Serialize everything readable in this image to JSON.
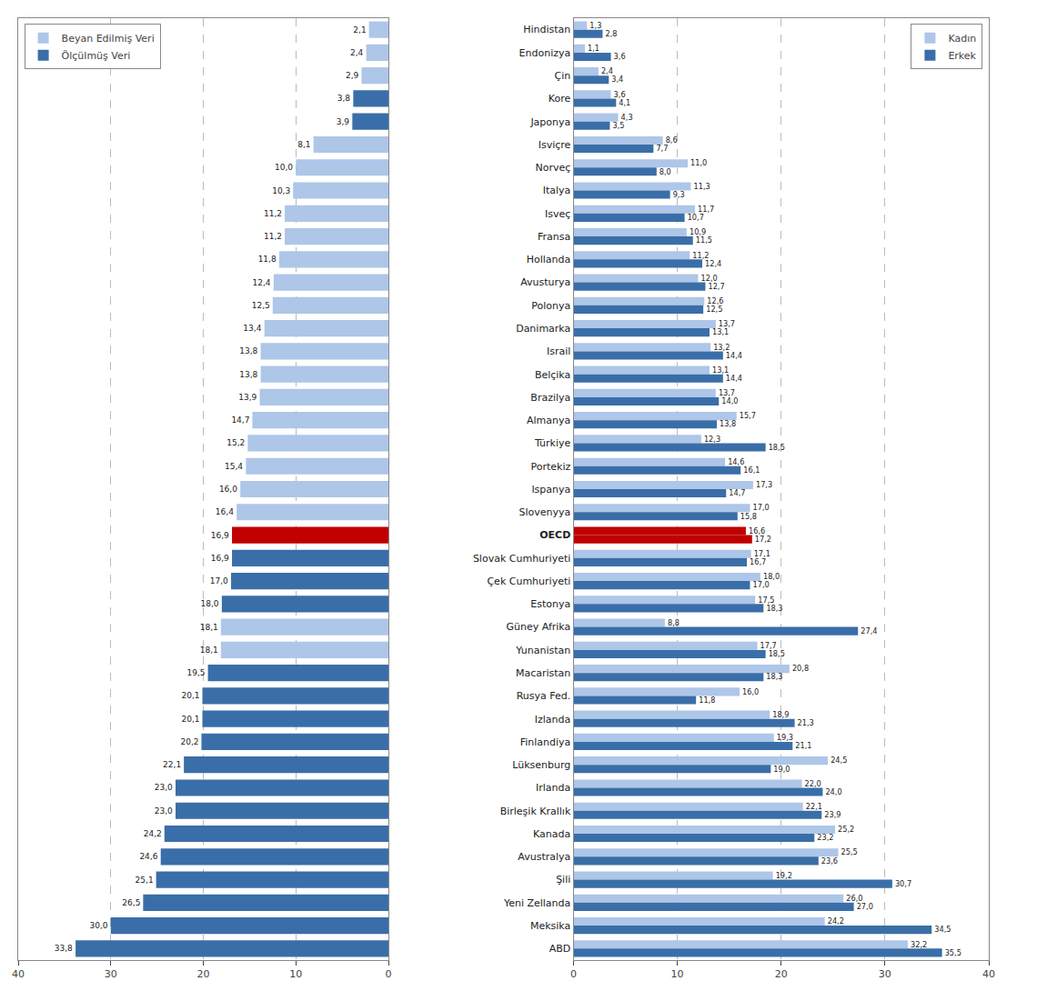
{
  "chart_data": [
    {
      "type": "bar",
      "orientation": "horizontal",
      "categories": [
        "Hindistan",
        "Endonizya",
        "Çin",
        "Kore",
        "Japonya",
        "Isviçre",
        "Norveç",
        "Italya",
        "Isveç",
        "Fransa",
        "Hollanda",
        "Avusturya",
        "Polonya",
        "Danimarka",
        "Israil",
        "Belçika",
        "Brazilya",
        "Almanya",
        "Türkiye",
        "Portekiz",
        "Ispanya",
        "Slovenyya",
        "OECD",
        "Slovak Cumhuriyeti",
        "Çek Cumhuriyeti",
        "Estonya",
        "Güney Afrika",
        "Yunanistan",
        "Macaristan",
        "Rusya Fed.",
        "Izlanda",
        "Finlandiya",
        "Lüksenburg",
        "Irlanda",
        "Birleşik Krallık",
        "Kanada",
        "Avustralya",
        "Şili",
        "Yeni Zellanda",
        "Meksika",
        "ABD"
      ],
      "series": [
        {
          "name": "Beyan Edilmiş Veri",
          "color": "#aec6e8",
          "values": [
            2.1,
            2.4,
            2.9,
            null,
            null,
            8.1,
            10.0,
            10.3,
            11.2,
            11.2,
            11.8,
            12.4,
            12.5,
            13.4,
            13.8,
            13.8,
            13.9,
            14.7,
            15.2,
            15.4,
            16.0,
            16.4,
            null,
            null,
            null,
            null,
            18.1,
            18.1,
            null,
            null,
            null,
            null,
            null,
            null,
            null,
            null,
            null,
            null,
            null,
            null,
            null
          ],
          "value_labels": [
            "2,1",
            "2,4",
            "2,9",
            null,
            null,
            "8,1",
            "10,0",
            "10,3",
            "11,2",
            "11,2",
            "11,8",
            "12,4",
            "12,5",
            "13,4",
            "13,8",
            "13,8",
            "13,9",
            "14,7",
            "15,2",
            "15,4",
            "16,0",
            "16,4",
            null,
            null,
            null,
            null,
            "18,1",
            "18,1",
            null,
            null,
            null,
            null,
            null,
            null,
            null,
            null,
            null,
            null,
            null,
            null,
            null
          ]
        },
        {
          "name": "Ölçülmüş Veri",
          "color": "#3a6ea8",
          "colors": [
            "#3a6ea8",
            "#3a6ea8",
            "#3a6ea8",
            "#3a6ea8",
            "#3a6ea8",
            "#3a6ea8",
            "#3a6ea8",
            "#3a6ea8",
            "#3a6ea8",
            "#3a6ea8",
            "#3a6ea8",
            "#3a6ea8",
            "#3a6ea8",
            "#3a6ea8",
            "#3a6ea8",
            "#3a6ea8",
            "#3a6ea8",
            "#3a6ea8",
            "#3a6ea8",
            "#3a6ea8",
            "#3a6ea8",
            "#3a6ea8",
            "#c00000",
            "#3a6ea8",
            "#3a6ea8",
            "#3a6ea8",
            "#3a6ea8",
            "#3a6ea8",
            "#3a6ea8",
            "#3a6ea8",
            "#3a6ea8",
            "#3a6ea8",
            "#3a6ea8",
            "#3a6ea8",
            "#3a6ea8",
            "#3a6ea8",
            "#3a6ea8",
            "#3a6ea8",
            "#3a6ea8",
            "#3a6ea8",
            "#3a6ea8"
          ],
          "values": [
            null,
            null,
            null,
            3.8,
            3.9,
            null,
            null,
            null,
            null,
            null,
            null,
            null,
            null,
            null,
            null,
            null,
            null,
            null,
            null,
            null,
            null,
            null,
            16.9,
            16.9,
            17.0,
            18.0,
            null,
            null,
            19.5,
            20.1,
            20.1,
            20.2,
            22.1,
            23.0,
            23.0,
            24.2,
            24.6,
            25.1,
            26.5,
            30.0,
            33.8
          ],
          "value_labels": [
            null,
            null,
            null,
            "3,8",
            "3,9",
            null,
            null,
            null,
            null,
            null,
            null,
            null,
            null,
            null,
            null,
            null,
            null,
            null,
            null,
            null,
            null,
            null,
            "16,9",
            "16,9",
            "17,0",
            "18,0",
            null,
            null,
            "19,5",
            "20,1",
            "20,1",
            "20,2",
            "22,1",
            "23,0",
            "23,0",
            "24,2",
            "24,6",
            "25,1",
            "26,5",
            "30,0",
            "33,8"
          ]
        }
      ],
      "xlim": [
        40,
        0
      ],
      "xticks": [
        0,
        10,
        20,
        30,
        40
      ],
      "grid": true,
      "legend": "upper left",
      "data_labels": true,
      "tick_labels": "x"
    },
    {
      "type": "bar",
      "orientation": "horizontal",
      "categories": [
        "Hindistan",
        "Endonizya",
        "Çin",
        "Kore",
        "Japonya",
        "Isviçre",
        "Norveç",
        "Italya",
        "Isveç",
        "Fransa",
        "Hollanda",
        "Avusturya",
        "Polonya",
        "Danimarka",
        "Israil",
        "Belçika",
        "Brazilya",
        "Almanya",
        "Türkiye",
        "Portekiz",
        "Ispanya",
        "Slovenyya",
        "OECD",
        "Slovak Cumhuriyeti",
        "Çek Cumhuriyeti",
        "Estonya",
        "Güney Afrika",
        "Yunanistan",
        "Macaristan",
        "Rusya Fed.",
        "Izlanda",
        "Finlandiya",
        "Lüksenburg",
        "Irlanda",
        "Birleşik Krallık",
        "Kanada",
        "Avustralya",
        "Şili",
        "Yeni Zellanda",
        "Meksika",
        "ABD"
      ],
      "series": [
        {
          "name": "Kadın",
          "color": "#aec6e8",
          "colors": [
            "#aec6e8",
            "#aec6e8",
            "#aec6e8",
            "#aec6e8",
            "#aec6e8",
            "#aec6e8",
            "#aec6e8",
            "#aec6e8",
            "#aec6e8",
            "#aec6e8",
            "#aec6e8",
            "#aec6e8",
            "#aec6e8",
            "#aec6e8",
            "#aec6e8",
            "#aec6e8",
            "#aec6e8",
            "#aec6e8",
            "#aec6e8",
            "#aec6e8",
            "#aec6e8",
            "#aec6e8",
            "#c00000",
            "#aec6e8",
            "#aec6e8",
            "#aec6e8",
            "#aec6e8",
            "#aec6e8",
            "#aec6e8",
            "#aec6e8",
            "#aec6e8",
            "#aec6e8",
            "#aec6e8",
            "#aec6e8",
            "#aec6e8",
            "#aec6e8",
            "#aec6e8",
            "#aec6e8",
            "#aec6e8",
            "#aec6e8",
            "#aec6e8"
          ],
          "values": [
            1.3,
            1.1,
            2.4,
            3.6,
            4.3,
            8.6,
            11.0,
            11.3,
            11.7,
            10.9,
            11.2,
            12.0,
            12.6,
            13.7,
            13.2,
            13.1,
            13.7,
            15.7,
            12.3,
            14.6,
            17.3,
            17.0,
            16.6,
            17.1,
            18.0,
            17.5,
            8.8,
            17.7,
            20.8,
            16.0,
            18.9,
            19.3,
            24.5,
            22.0,
            22.1,
            25.2,
            25.5,
            19.2,
            26.0,
            24.2,
            32.2
          ],
          "value_labels": [
            "1,3",
            "1,1",
            "2,4",
            "3,6",
            "4,3",
            "8,6",
            "11,0",
            "11,3",
            "11,7",
            "10,9",
            "11,2",
            "12,0",
            "12,6",
            "13,7",
            "13,2",
            "13,1",
            "13,7",
            "15,7",
            "12,3",
            "14,6",
            "17,3",
            "17,0",
            "16,6",
            "17,1",
            "18,0",
            "17,5",
            "8,8",
            "17,7",
            "20,8",
            "16,0",
            "18,9",
            "19,3",
            "24,5",
            "22,0",
            "22,1",
            "25,2",
            "25,5",
            "19,2",
            "26,0",
            "24,2",
            "32,2"
          ]
        },
        {
          "name": "Erkek",
          "color": "#3a6ea8",
          "colors": [
            "#3a6ea8",
            "#3a6ea8",
            "#3a6ea8",
            "#3a6ea8",
            "#3a6ea8",
            "#3a6ea8",
            "#3a6ea8",
            "#3a6ea8",
            "#3a6ea8",
            "#3a6ea8",
            "#3a6ea8",
            "#3a6ea8",
            "#3a6ea8",
            "#3a6ea8",
            "#3a6ea8",
            "#3a6ea8",
            "#3a6ea8",
            "#3a6ea8",
            "#3a6ea8",
            "#3a6ea8",
            "#3a6ea8",
            "#3a6ea8",
            "#c00000",
            "#3a6ea8",
            "#3a6ea8",
            "#3a6ea8",
            "#3a6ea8",
            "#3a6ea8",
            "#3a6ea8",
            "#3a6ea8",
            "#3a6ea8",
            "#3a6ea8",
            "#3a6ea8",
            "#3a6ea8",
            "#3a6ea8",
            "#3a6ea8",
            "#3a6ea8",
            "#3a6ea8",
            "#3a6ea8",
            "#3a6ea8",
            "#3a6ea8"
          ],
          "values": [
            2.8,
            3.6,
            3.4,
            4.1,
            3.5,
            7.7,
            8.0,
            9.3,
            10.7,
            11.5,
            12.4,
            12.7,
            12.5,
            13.1,
            14.4,
            14.4,
            14.0,
            13.8,
            18.5,
            16.1,
            14.7,
            15.8,
            17.2,
            16.7,
            17.0,
            18.3,
            27.4,
            18.5,
            18.3,
            11.8,
            21.3,
            21.1,
            19.0,
            24.0,
            23.9,
            23.2,
            23.6,
            30.7,
            27.0,
            34.5,
            35.5
          ],
          "value_labels": [
            "2,8",
            "3,6",
            "3,4",
            "4,1",
            "3,5",
            "7,7",
            "8,0",
            "9,3",
            "10,7",
            "11,5",
            "12,4",
            "12,7",
            "12,5",
            "13,1",
            "14,4",
            "14,4",
            "14,0",
            "13,8",
            "18,5",
            "16,1",
            "14,7",
            "15,8",
            "17,2",
            "16,7",
            "17,0",
            "18,3",
            "27,4",
            "18,5",
            "18,3",
            "11,8",
            "21,3",
            "21,1",
            "19,0",
            "24,0",
            "23,9",
            "23,2",
            "23,6",
            "30,7",
            "27,0",
            "34,5",
            "35,5"
          ]
        }
      ],
      "xlim": [
        0,
        40
      ],
      "xticks": [
        0,
        10,
        20,
        30,
        40
      ],
      "grid": true,
      "legend": "upper right",
      "data_labels": true
    }
  ]
}
